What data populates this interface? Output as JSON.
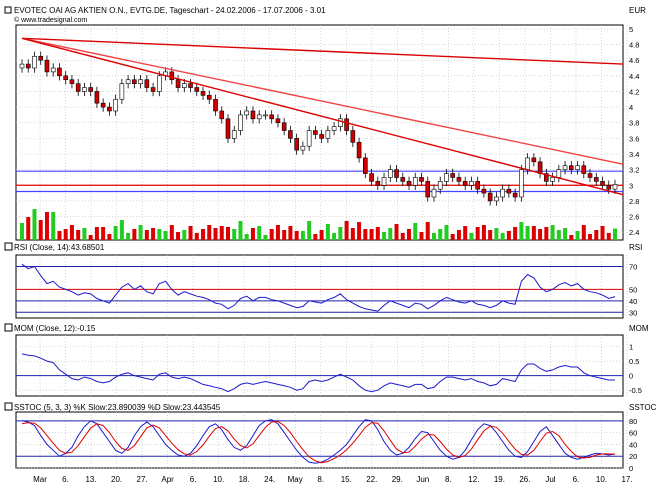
{
  "chart_data": {
    "type": "candlestick",
    "title": "EVOTEC OAI AG AKTIEN O.N., EVTG.DE, Tageschart - 24.02.2006 - 17.07.2006 - 3.01",
    "subtitle": "© www.tradesignal.com",
    "currency_label": "EUR",
    "x_ticks": [
      "Mar",
      "6.",
      "13.",
      "20.",
      "27.",
      "Apr",
      "6.",
      "10.",
      "18.",
      "24.",
      "May",
      "8.",
      "15.",
      "22.",
      "29.",
      "Jun",
      "8.",
      "12.",
      "19.",
      "26.",
      "Jul",
      "6.",
      "10.",
      "17."
    ],
    "price_axis": {
      "ylim": [
        2.3,
        5.05
      ],
      "ticks": [
        "5",
        "4.8",
        "4.6",
        "4.4",
        "4.2",
        "4",
        "3.8",
        "3.6",
        "3.4",
        "3.2",
        "3",
        "2.8",
        "2.6",
        "2.4"
      ]
    },
    "close_series": [
      4.55,
      4.5,
      4.65,
      4.6,
      4.45,
      4.5,
      4.4,
      4.35,
      4.3,
      4.2,
      4.25,
      4.2,
      4.05,
      4.0,
      3.95,
      4.1,
      4.3,
      4.35,
      4.3,
      4.35,
      4.25,
      4.2,
      4.4,
      4.45,
      4.35,
      4.25,
      4.3,
      4.25,
      4.2,
      4.15,
      4.1,
      3.95,
      3.85,
      3.6,
      3.7,
      3.9,
      3.95,
      3.85,
      3.9,
      3.9,
      3.85,
      3.8,
      3.7,
      3.6,
      3.45,
      3.5,
      3.7,
      3.65,
      3.6,
      3.7,
      3.75,
      3.85,
      3.7,
      3.55,
      3.35,
      3.15,
      3.05,
      3.0,
      3.1,
      3.2,
      3.1,
      3.05,
      3.0,
      3.1,
      3.05,
      2.85,
      2.95,
      3.05,
      3.15,
      3.1,
      3.05,
      3.0,
      3.05,
      2.95,
      2.9,
      2.8,
      2.85,
      2.95,
      2.9,
      2.85,
      3.2,
      3.35,
      3.3,
      3.15,
      3.05,
      3.1,
      3.2,
      3.25,
      3.2,
      3.25,
      3.15,
      3.1,
      3.05,
      3.0,
      2.95,
      3.01
    ],
    "sample_candles": [
      {
        "open": 4.45,
        "high": 4.9,
        "low": 4.3,
        "close": 4.55
      },
      {
        "open": 3.95,
        "high": 4.05,
        "low": 3.75,
        "close": 3.85
      },
      {
        "open": 3.45,
        "high": 3.55,
        "low": 3.35,
        "close": 3.5
      },
      {
        "open": 3.1,
        "high": 3.2,
        "low": 2.95,
        "close": 3.0
      },
      {
        "open": 2.85,
        "high": 3.0,
        "low": 2.75,
        "close": 2.95
      },
      {
        "open": 3.05,
        "high": 3.55,
        "low": 3.0,
        "close": 3.35
      }
    ],
    "trendlines": [
      {
        "from": [
          0,
          4.88
        ],
        "to": [
          95,
          4.55
        ],
        "color": "#dd0000"
      },
      {
        "from": [
          0,
          4.88
        ],
        "to": [
          95,
          3.27
        ],
        "color": "#ee4444"
      },
      {
        "from": [
          0,
          4.88
        ],
        "to": [
          95,
          2.88
        ],
        "color": "#dd0000"
      }
    ],
    "horizontal_lines": [
      {
        "value": 3.0,
        "color": "#dd0000"
      },
      {
        "value": 3.18,
        "color": "#4444ff"
      },
      {
        "value": 2.92,
        "color": "#4444ff"
      }
    ],
    "indicators": [
      {
        "label": "RSI (Close, 14):43.68501",
        "axis_label": "RSI",
        "ylim": [
          25,
          80
        ],
        "ticks": [
          "70",
          "50",
          "40",
          "30"
        ],
        "guides": [
          70,
          50,
          40,
          30
        ],
        "values": [
          72,
          68,
          70,
          62,
          55,
          57,
          52,
          50,
          48,
          45,
          47,
          46,
          42,
          40,
          38,
          45,
          52,
          55,
          50,
          53,
          48,
          46,
          55,
          57,
          50,
          45,
          48,
          46,
          44,
          43,
          41,
          38,
          37,
          33,
          36,
          42,
          44,
          40,
          43,
          43,
          41,
          40,
          38,
          36,
          34,
          35,
          40,
          39,
          38,
          41,
          43,
          46,
          41,
          38,
          35,
          33,
          32,
          31,
          36,
          40,
          38,
          36,
          34,
          38,
          37,
          33,
          36,
          40,
          43,
          41,
          39,
          38,
          40,
          37,
          36,
          34,
          36,
          40,
          38,
          37,
          57,
          63,
          60,
          52,
          48,
          50,
          54,
          56,
          53,
          55,
          50,
          48,
          47,
          45,
          42,
          43.7
        ]
      },
      {
        "label": "MOM (Close, 12):-0.15",
        "axis_label": "MOM",
        "ylim": [
          -0.7,
          1.4
        ],
        "ticks": [
          "1",
          "0.5",
          "0",
          "-0.5"
        ],
        "guides": [
          0
        ],
        "values": [
          0.75,
          0.7,
          0.68,
          0.6,
          0.5,
          0.45,
          0.2,
          0.05,
          -0.1,
          -0.15,
          -0.05,
          -0.1,
          -0.2,
          -0.25,
          -0.2,
          -0.05,
          0.05,
          0.1,
          0.0,
          -0.05,
          -0.1,
          -0.15,
          0.05,
          0.1,
          -0.05,
          -0.1,
          -0.05,
          -0.1,
          -0.2,
          -0.3,
          -0.35,
          -0.4,
          -0.45,
          -0.55,
          -0.45,
          -0.3,
          -0.25,
          -0.3,
          -0.25,
          -0.2,
          -0.25,
          -0.3,
          -0.35,
          -0.4,
          -0.5,
          -0.45,
          -0.2,
          -0.15,
          -0.2,
          -0.15,
          -0.05,
          0.05,
          -0.05,
          -0.15,
          -0.35,
          -0.5,
          -0.55,
          -0.5,
          -0.35,
          -0.25,
          -0.3,
          -0.35,
          -0.4,
          -0.3,
          -0.3,
          -0.45,
          -0.4,
          -0.2,
          -0.05,
          -0.05,
          -0.1,
          -0.15,
          -0.1,
          -0.2,
          -0.25,
          -0.35,
          -0.3,
          -0.1,
          -0.15,
          -0.2,
          0.2,
          0.4,
          0.4,
          0.25,
          0.15,
          0.2,
          0.3,
          0.35,
          0.3,
          0.3,
          0.1,
          0.0,
          -0.05,
          -0.1,
          -0.15,
          -0.15
        ]
      },
      {
        "label": "SSTOC (5, 3, 3) %K Slow:23.890039 %D Slow:23.443545",
        "axis_label": "SSTOC",
        "ylim": [
          0,
          95
        ],
        "ticks": [
          "80",
          "60",
          "40",
          "20",
          "0"
        ],
        "guides": [
          80,
          20
        ],
        "k_values": [
          80,
          78,
          72,
          55,
          40,
          30,
          20,
          25,
          35,
          55,
          70,
          80,
          75,
          60,
          45,
          30,
          25,
          35,
          55,
          70,
          78,
          70,
          55,
          40,
          30,
          22,
          20,
          25,
          38,
          55,
          70,
          75,
          65,
          48,
          35,
          30,
          38,
          55,
          72,
          80,
          82,
          75,
          60,
          45,
          30,
          18,
          10,
          8,
          10,
          15,
          22,
          30,
          40,
          55,
          70,
          82,
          80,
          65,
          45,
          30,
          22,
          25,
          35,
          50,
          62,
          60,
          45,
          30,
          20,
          15,
          18,
          30,
          48,
          65,
          75,
          72,
          60,
          45,
          30,
          20,
          18,
          28,
          45,
          62,
          70,
          55,
          40,
          25,
          18,
          15,
          18,
          22,
          25,
          24,
          22,
          23.9
        ],
        "d_values": [
          75,
          77,
          76,
          68,
          55,
          42,
          30,
          25,
          27,
          38,
          53,
          68,
          75,
          72,
          60,
          45,
          33,
          30,
          38,
          53,
          68,
          73,
          68,
          55,
          42,
          31,
          24,
          22,
          28,
          39,
          54,
          67,
          70,
          63,
          49,
          38,
          34,
          41,
          55,
          69,
          78,
          79,
          72,
          60,
          45,
          31,
          19,
          12,
          9,
          11,
          16,
          22,
          31,
          42,
          55,
          69,
          77,
          76,
          63,
          47,
          32,
          26,
          27,
          37,
          49,
          57,
          56,
          45,
          32,
          22,
          18,
          21,
          32,
          48,
          63,
          71,
          69,
          59,
          45,
          32,
          23,
          22,
          30,
          45,
          59,
          62,
          55,
          40,
          28,
          19,
          17,
          18,
          22,
          24,
          24,
          23.4
        ]
      }
    ]
  }
}
